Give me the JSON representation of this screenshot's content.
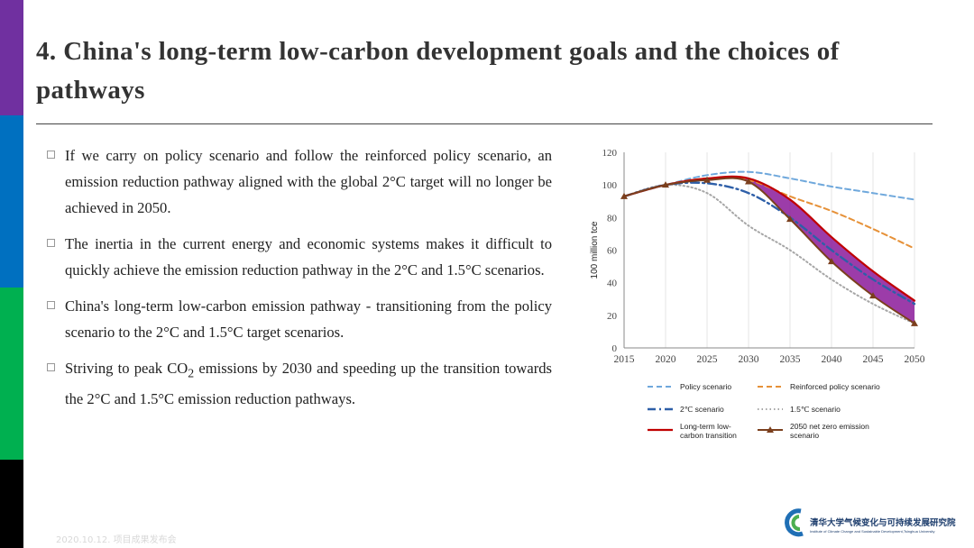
{
  "slide": {
    "title": "4. China's long-term low-carbon development goals and the choices of pathways",
    "footer": "2020.10.12. 项目成果发布会",
    "side_bar_colors": [
      "#7030a0",
      "#0070c0",
      "#00b050",
      "#000000"
    ]
  },
  "bullets": [
    {
      "segments": [
        {
          "text": "If we carry on policy scenario and follow the reinforced policy scenario, an emission reduction pathway aligned with the global 2°C target will no longer be achieved  in 2050."
        }
      ]
    },
    {
      "segments": [
        {
          "text": "The inertia in the current energy and economic systems makes it difficult to quickly achieve the emission reduction pathway in the 2°C and 1.5°C scenarios."
        }
      ]
    },
    {
      "segments": [
        {
          "text": "China's long-term low-carbon emission pathway - transitioning from the policy scenario to the 2°C and 1.5°C target scenarios."
        }
      ]
    },
    {
      "segments": [
        {
          "text": "Striving to peak CO"
        },
        {
          "text": "2",
          "sub": true
        },
        {
          "text": " emissions by 2030 and speeding up the transition towards the 2°C and 1.5°C emission reduction pathways."
        }
      ]
    }
  ],
  "logo": {
    "name_cn": "清华大学气候变化与可持续发展研究院",
    "name_en": "Institute of Climate Change and Sustainable Development,Tsinghua University"
  },
  "chart_data": {
    "type": "line",
    "ylabel": "100 million tce",
    "ylim": [
      0,
      120
    ],
    "yticks": [
      0,
      20,
      40,
      60,
      80,
      100,
      120
    ],
    "xlim": [
      2015,
      2050
    ],
    "xticks": [
      2015,
      2020,
      2025,
      2030,
      2035,
      2040,
      2045,
      2050
    ],
    "grid": "vertical lines at x ticks",
    "legend_position": "bottom, two columns",
    "shaded_band": {
      "between": [
        "Long-term low-carbon transition",
        "2050 net zero emission scenario"
      ],
      "color": "#8b1a9a"
    },
    "series": [
      {
        "name": "Policy scenario",
        "style": "dashed",
        "color": "#6fa8dc",
        "x": [
          2015,
          2020,
          2025,
          2030,
          2035,
          2040,
          2045,
          2050
        ],
        "y": [
          93,
          100,
          106,
          108,
          104,
          99,
          95,
          91
        ]
      },
      {
        "name": "Reinforced policy scenario",
        "style": "dashed",
        "color": "#e69138",
        "x": [
          2015,
          2020,
          2025,
          2030,
          2035,
          2040,
          2045,
          2050
        ],
        "y": [
          93,
          100,
          104,
          103,
          93,
          84,
          73,
          61
        ]
      },
      {
        "name": "2℃ scenario",
        "style": "dash-dot",
        "color": "#2e5fa8",
        "x": [
          2015,
          2020,
          2025,
          2030,
          2035,
          2040,
          2045,
          2050
        ],
        "y": [
          93,
          100,
          101,
          95,
          80,
          60,
          42,
          27
        ]
      },
      {
        "name": "1.5℃ scenario",
        "style": "dotted",
        "color": "#a6a6a6",
        "x": [
          2015,
          2020,
          2025,
          2030,
          2035,
          2040,
          2045,
          2050
        ],
        "y": [
          93,
          100,
          95,
          75,
          60,
          42,
          27,
          15
        ]
      },
      {
        "name": "Long-term low-carbon transition",
        "style": "solid",
        "color": "#c00000",
        "x": [
          2015,
          2020,
          2025,
          2030,
          2035,
          2040,
          2045,
          2050
        ],
        "y": [
          93,
          100,
          104,
          104,
          91,
          68,
          47,
          29
        ]
      },
      {
        "name": "2050 net zero emission scenario",
        "style": "solid-markers",
        "color": "#7b3f1d",
        "x": [
          2015,
          2020,
          2025,
          2030,
          2035,
          2040,
          2045,
          2050
        ],
        "y": [
          93,
          100,
          103,
          102,
          79,
          53,
          32,
          15
        ]
      }
    ]
  }
}
